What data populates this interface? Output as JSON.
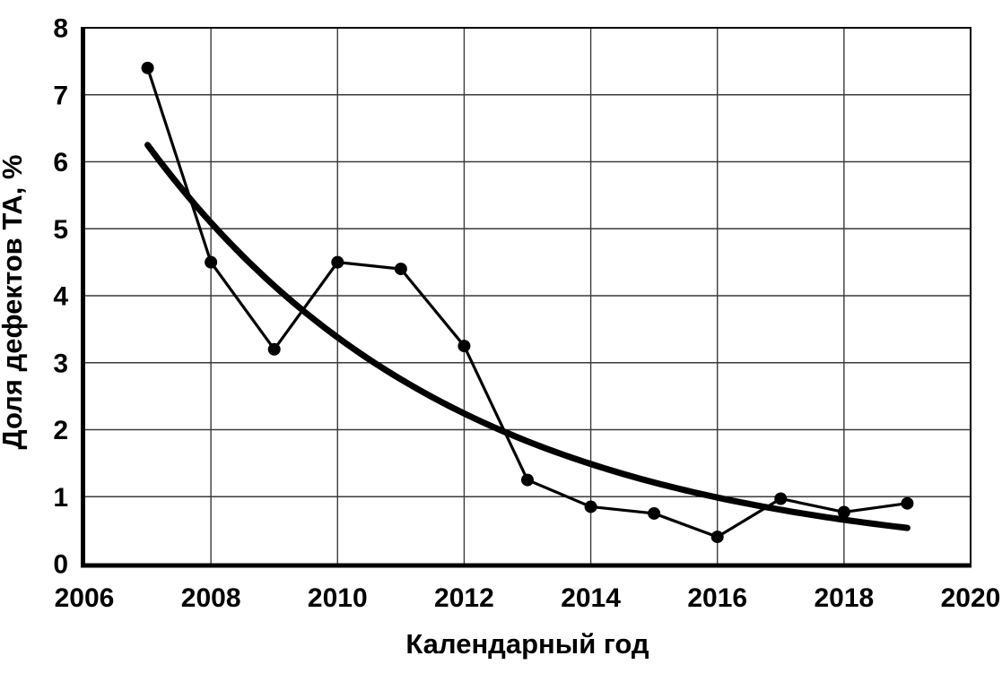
{
  "chart_data": {
    "type": "line",
    "title": "",
    "xlabel": "Календарный год",
    "ylabel": "Доля дефектов ТА, %",
    "xlim": [
      2006,
      2020
    ],
    "ylim": [
      0,
      8
    ],
    "x_ticks": [
      2006,
      2008,
      2010,
      2012,
      2014,
      2016,
      2018,
      2020
    ],
    "y_ticks": [
      0,
      1,
      2,
      3,
      4,
      5,
      6,
      7,
      8
    ],
    "grid": true,
    "legend": "none",
    "series": [
      {
        "name": "annual-defect-share",
        "style": "thin-line-with-round-markers",
        "x": [
          2007,
          2008,
          2009,
          2010,
          2011,
          2012,
          2013,
          2014,
          2015,
          2016,
          2017,
          2018,
          2019
        ],
        "y": [
          7.4,
          4.5,
          3.2,
          4.5,
          4.4,
          3.25,
          1.25,
          0.85,
          0.75,
          0.4,
          0.97,
          0.77,
          0.9
        ]
      },
      {
        "name": "exponential-trend",
        "style": "thick-smooth-curve",
        "fit": {
          "type": "exponential",
          "a": 6.25,
          "k": 0.205,
          "t0": 2007,
          "x_start": 2007,
          "x_end": 2019
        },
        "x": [
          2007,
          2008,
          2009,
          2010,
          2011,
          2012,
          2013,
          2014,
          2015,
          2016,
          2017,
          2018,
          2019
        ],
        "y": [
          6.25,
          5.09,
          4.15,
          3.38,
          2.75,
          2.24,
          1.83,
          1.49,
          1.21,
          0.99,
          0.81,
          0.66,
          0.53
        ]
      }
    ],
    "colors": {
      "background": "#ffffff",
      "grid": "#3a3a3a",
      "axis": "#000000",
      "series_line": "#000000",
      "marker": "#000000",
      "trend_line": "#000000",
      "text": "#000000"
    }
  }
}
